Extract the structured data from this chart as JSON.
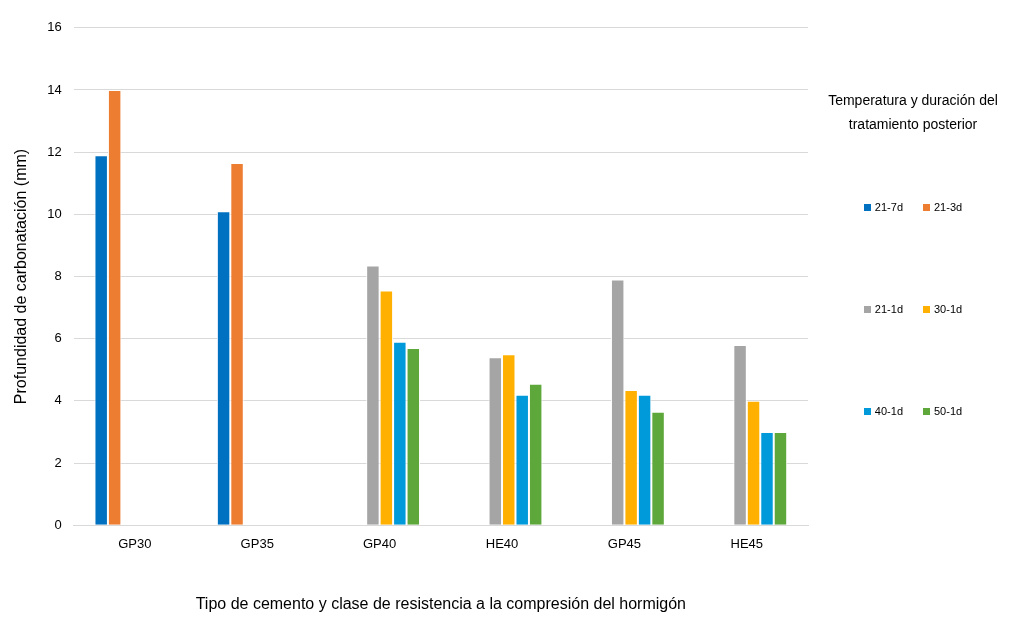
{
  "chart_data": {
    "type": "bar",
    "xlabel": "Tipo de cemento y clase de resistencia a la compresión del hormigón",
    "ylabel": "Profundidad de carbonatación (mm)",
    "legend_title": "Temperatura y duración del tratamiento posterior",
    "categories": [
      "GP30",
      "GP35",
      "GP40",
      "HE40",
      "GP45",
      "HE45"
    ],
    "series": [
      {
        "name": "21-7d",
        "color": "#0070c0",
        "values": [
          11.9,
          10.1,
          null,
          null,
          null,
          null
        ]
      },
      {
        "name": "21-3d",
        "color": "#ed7d31",
        "values": [
          14.0,
          11.65,
          null,
          null,
          null,
          null
        ]
      },
      {
        "name": "21-1d",
        "color": "#a5a5a5",
        "values": [
          null,
          null,
          8.35,
          5.4,
          7.9,
          5.8
        ]
      },
      {
        "name": "30-1d",
        "color": "#ffb000",
        "values": [
          null,
          null,
          7.55,
          5.5,
          4.35,
          4.0
        ]
      },
      {
        "name": "40-1d",
        "color": "#009ada",
        "values": [
          null,
          null,
          5.9,
          4.2,
          4.2,
          3.0
        ]
      },
      {
        "name": "50-1d",
        "color": "#5ea83b",
        "values": [
          null,
          null,
          5.7,
          4.55,
          3.65,
          3.0
        ]
      }
    ],
    "ylim": [
      0,
      16
    ],
    "yticks": [
      0,
      2,
      4,
      6,
      8,
      10,
      12,
      14,
      16
    ],
    "grid": "y",
    "legend": "right"
  }
}
